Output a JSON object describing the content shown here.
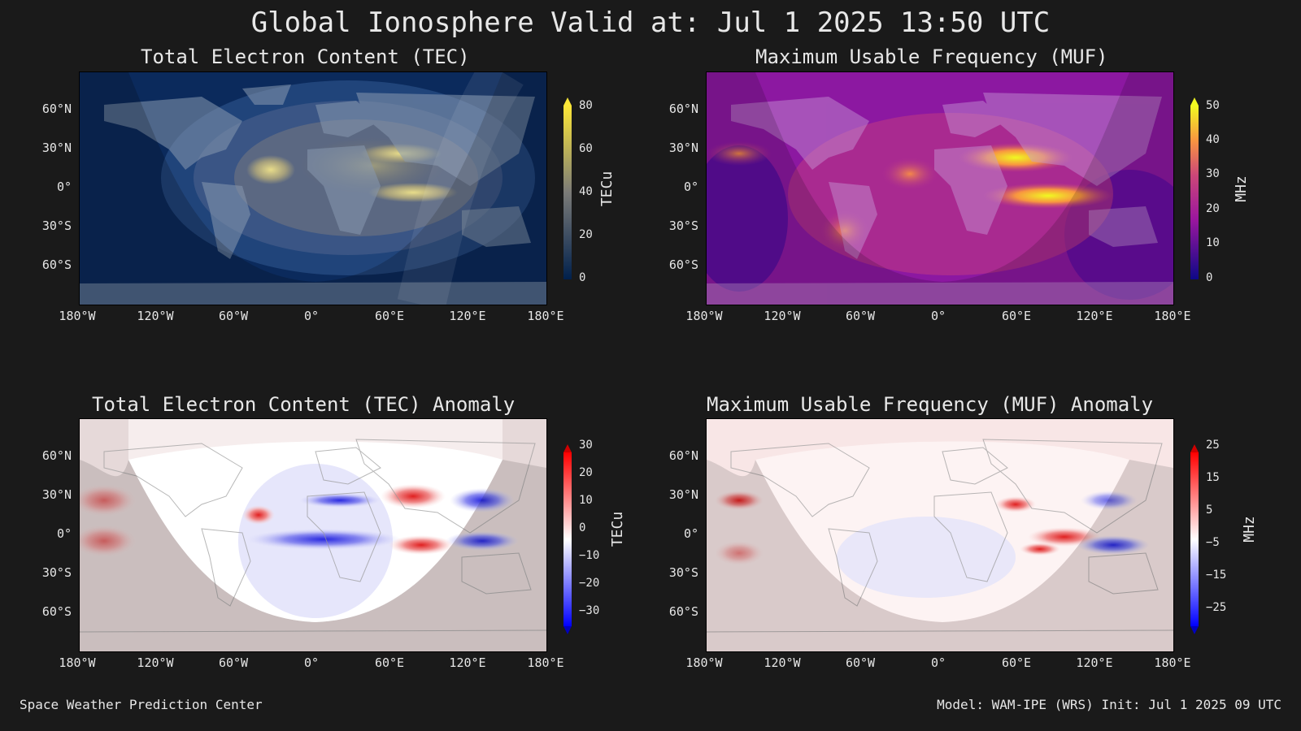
{
  "title": "Global Ionosphere Valid at: Jul 1 2025 13:50 UTC",
  "lat_ticks": [
    "60°N",
    "30°N",
    "0°",
    "30°S",
    "60°S"
  ],
  "lon_ticks": [
    "180°W",
    "120°W",
    "60°W",
    "0°",
    "60°E",
    "120°E",
    "180°E"
  ],
  "panels": [
    {
      "title": "Total Electron Content (TEC)",
      "unit": "TECu",
      "colorbar_ticks": [
        "80",
        "60",
        "40",
        "20",
        "0"
      ],
      "colormap": "cividis",
      "colors": {
        "low": "#00204c",
        "mid": "#7b7b78",
        "high": "#fde737"
      }
    },
    {
      "title": "Maximum Usable Frequency (MUF)",
      "unit": "MHz",
      "colorbar_ticks": [
        "50",
        "40",
        "30",
        "20",
        "10",
        "0"
      ],
      "colormap": "plasma",
      "colors": {
        "low": "#0d0887",
        "mid": "#cc4778",
        "high": "#f0f921"
      }
    },
    {
      "title": "Total Electron Content (TEC) Anomaly",
      "unit": "TECu",
      "colorbar_ticks": [
        "30",
        "20",
        "10",
        "0",
        "−10",
        "−20",
        "−30"
      ],
      "colormap": "bwr",
      "colors": {
        "low": "#0000ff",
        "mid": "#ffffff",
        "high": "#ff0000"
      }
    },
    {
      "title": "Maximum Usable Frequency (MUF) Anomaly",
      "unit": "MHz",
      "colorbar_ticks": [
        "25",
        "15",
        "5",
        "−5",
        "−15",
        "−25"
      ],
      "colormap": "bwr",
      "colors": {
        "low": "#0000ff",
        "mid": "#ffffff",
        "high": "#ff0000"
      }
    }
  ],
  "footer": {
    "left": "Space Weather Prediction Center",
    "right": "Model: WAM-IPE (WRS) Init: Jul 1 2025 09 UTC"
  }
}
